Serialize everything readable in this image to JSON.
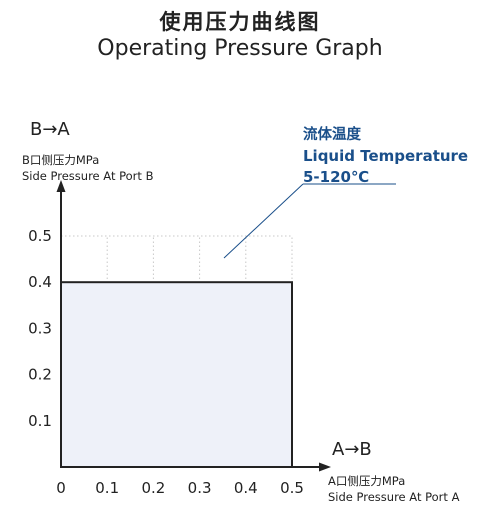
{
  "title_cn": "使用压力曲线图",
  "title_en": "Operating Pressure Graph",
  "y_axis": {
    "direction": "B→A",
    "label_cn": "B口侧压力MPa",
    "label_en": "Side Pressure At Port B"
  },
  "x_axis": {
    "direction": "A→B",
    "label_cn": "A口侧压力MPa",
    "label_en": "Side Pressure At Port A"
  },
  "annotation": {
    "line1": "流体温度",
    "line2": "Liquid Temperature",
    "line3": "5-120℃"
  },
  "colors": {
    "region_fill": "#eef1f9",
    "annotation": "#1a4f8a",
    "grid": "#c8c8c8",
    "axis": "#222222"
  },
  "chart_data": {
    "type": "area",
    "x_ticks": [
      "0",
      "0.1",
      "0.2",
      "0.3",
      "0.4",
      "0.5"
    ],
    "y_ticks": [
      "0.1",
      "0.2",
      "0.3",
      "0.4",
      "0.5"
    ],
    "xlim": [
      0,
      0.5
    ],
    "ylim": [
      0,
      0.5
    ],
    "region": {
      "x": [
        0,
        0.5
      ],
      "y": [
        0,
        0.4
      ]
    },
    "grid": true
  }
}
